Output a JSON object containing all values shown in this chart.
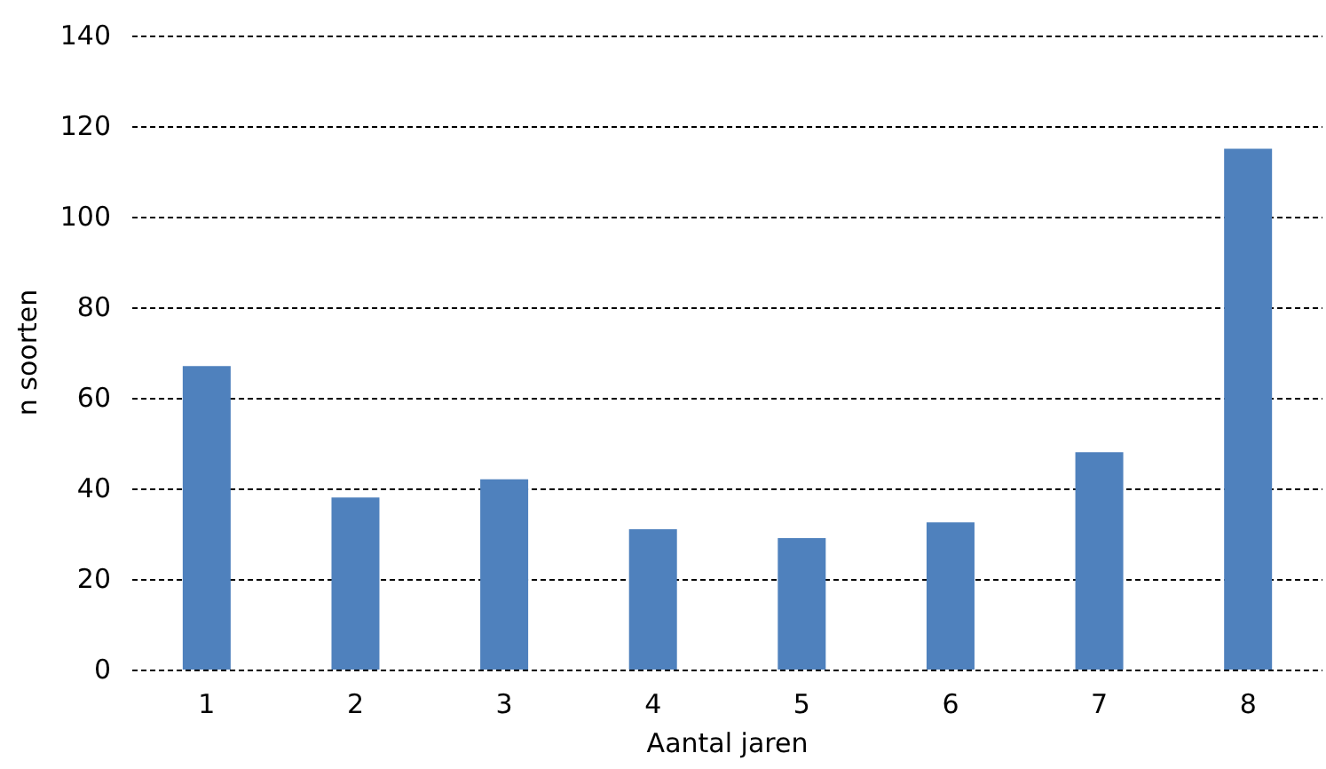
{
  "chart_data": {
    "type": "bar",
    "xlabel": "Aantal jaren",
    "ylabel": "n soorten",
    "categories": [
      "1",
      "2",
      "3",
      "4",
      "5",
      "6",
      "7",
      "8"
    ],
    "values": [
      67,
      38,
      42,
      31,
      29,
      32.5,
      48,
      115
    ],
    "color": "#4f81bd",
    "ylim": [
      0,
      140
    ],
    "yticks": [
      0,
      20,
      40,
      60,
      80,
      100,
      120,
      140
    ],
    "grid": "y"
  }
}
